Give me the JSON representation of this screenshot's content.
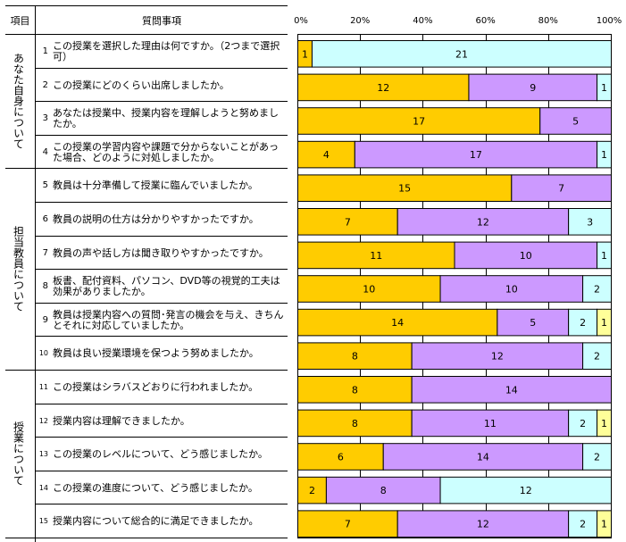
{
  "table": {
    "header_category": "項目",
    "header_question": "質問事項",
    "categories": [
      {
        "label": "あなた自身について",
        "rows": [
          0,
          3
        ]
      },
      {
        "label": "担当教員について",
        "rows": [
          4,
          9
        ]
      },
      {
        "label": "授業について",
        "rows": [
          10,
          14
        ]
      }
    ],
    "questions": [
      {
        "num": "1",
        "text": "この授業を選択した理由は何ですか。（2つまで選択可）"
      },
      {
        "num": "2",
        "text": "この授業にどのくらい出席しましたか。"
      },
      {
        "num": "3",
        "text": "あなたは授業中、授業内容を理解しようと努めましたか。"
      },
      {
        "num": "4",
        "text": "この授業の学習内容や課題で分からないことがあった場合、どのように対処しましたか。"
      },
      {
        "num": "5",
        "text": "教員は十分準備して授業に臨んでいましたか。"
      },
      {
        "num": "6",
        "text": "教員の説明の仕方は分かりやすかったですか。"
      },
      {
        "num": "7",
        "text": "教員の声や話し方は聞き取りやすかったですか。"
      },
      {
        "num": "8",
        "text": "板書、配付資料、パソコン、DVD等の視覚的工夫は効果がありましたか。"
      },
      {
        "num": "9",
        "text": "教員は授業内容への質問･発言の機会を与え、きちんとそれに対応していましたか。"
      },
      {
        "num": "10",
        "text": "教員は良い授業環境を保つよう努めましたか。"
      },
      {
        "num": "11",
        "text": "この授業はシラバスどおりに行われましたか。"
      },
      {
        "num": "12",
        "text": "授業内容は理解できましたか。"
      },
      {
        "num": "13",
        "text": "この授業のレベルについて、どう感じましたか。"
      },
      {
        "num": "14",
        "text": "この授業の進度について、どう感じましたか。"
      },
      {
        "num": "15",
        "text": "授業内容について総合的に満足できましたか。"
      }
    ]
  },
  "chart_data": {
    "type": "bar",
    "orientation": "horizontal",
    "stacked": "percent",
    "title": "",
    "xlabel": "",
    "ylabel": "",
    "xlim": [
      0,
      100
    ],
    "x_ticks": [
      "0%",
      "20%",
      "40%",
      "60%",
      "80%",
      "100%"
    ],
    "grid": true,
    "legend": "none",
    "categories": [
      "1",
      "2",
      "3",
      "4",
      "5",
      "6",
      "7",
      "8",
      "9",
      "10",
      "11",
      "12",
      "13",
      "14",
      "15"
    ],
    "series": [
      {
        "name": "series-1",
        "color": "#ffcc00",
        "values": [
          1,
          12,
          17,
          4,
          15,
          7,
          11,
          10,
          14,
          8,
          8,
          8,
          6,
          2,
          7
        ]
      },
      {
        "name": "series-2",
        "color": "#cc99ff",
        "values": [
          0,
          9,
          5,
          17,
          7,
          12,
          10,
          10,
          5,
          12,
          14,
          11,
          14,
          8,
          12
        ]
      },
      {
        "name": "series-3",
        "color": "#ccffff",
        "values": [
          21,
          1,
          0,
          1,
          0,
          3,
          1,
          2,
          2,
          2,
          0,
          2,
          2,
          12,
          2
        ]
      },
      {
        "name": "series-4",
        "color": "#ffff99",
        "values": [
          0,
          0,
          0,
          0,
          0,
          0,
          0,
          0,
          1,
          0,
          0,
          1,
          0,
          0,
          1
        ]
      }
    ]
  }
}
